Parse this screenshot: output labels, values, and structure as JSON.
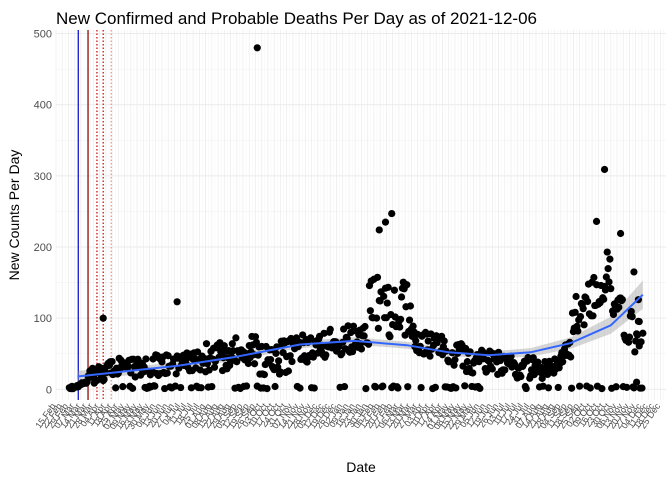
{
  "chart_data": {
    "type": "scatter",
    "title": "New Confirmed and Probable Deaths Per Day as of 2021-12-06",
    "xlabel": "Date",
    "ylabel": "New Counts Per Day",
    "ylim": [
      -15,
      505
    ],
    "y_ticks": [
      0,
      100,
      200,
      300,
      400,
      500
    ],
    "xlim": [
      "2020-02-15",
      "2021-12-31"
    ],
    "x_tick_format": "%d %b",
    "x_tick_every_days": 7,
    "grid": true,
    "background": "#ffffff",
    "grid_color": "#ebebeb",
    "point_color": "#000000",
    "smooth_color": "#3366ff",
    "band_color": "#999999",
    "vlines": [
      {
        "date": "2020-03-11",
        "color": "#0000cc",
        "style": "solid"
      },
      {
        "date": "2020-03-22",
        "color": "#8b0000",
        "style": "solid"
      },
      {
        "date": "2020-04-01",
        "color": "#cc0000",
        "style": "dotted"
      },
      {
        "date": "2020-04-08",
        "color": "#cc0000",
        "style": "dotted"
      },
      {
        "date": "2020-04-17",
        "color": "#e89090",
        "style": "dotted"
      }
    ],
    "segments": [
      {
        "start": "2020-03-01",
        "end": "2020-03-21",
        "y0": 1,
        "y1": 10,
        "spread": 4
      },
      {
        "start": "2020-03-22",
        "end": "2020-04-30",
        "y0": 15,
        "y1": 35,
        "spread": 25
      },
      {
        "start": "2020-05-01",
        "end": "2020-07-31",
        "y0": 30,
        "y1": 40,
        "spread": 30
      },
      {
        "start": "2020-08-01",
        "end": "2020-09-30",
        "y0": 45,
        "y1": 55,
        "spread": 45
      },
      {
        "start": "2020-10-01",
        "end": "2020-11-30",
        "y0": 40,
        "y1": 55,
        "spread": 50
      },
      {
        "start": "2020-12-01",
        "end": "2021-01-31",
        "y0": 60,
        "y1": 75,
        "spread": 40
      },
      {
        "start": "2021-02-01",
        "end": "2021-03-20",
        "y0": 120,
        "y1": 110,
        "spread": 85
      },
      {
        "start": "2021-03-21",
        "end": "2021-05-20",
        "y0": 70,
        "y1": 45,
        "spread": 40
      },
      {
        "start": "2021-05-21",
        "end": "2021-08-15",
        "y0": 40,
        "y1": 30,
        "spread": 35
      },
      {
        "start": "2021-08-16",
        "end": "2021-09-15",
        "y0": 25,
        "y1": 55,
        "spread": 30
      },
      {
        "start": "2021-09-16",
        "end": "2021-10-31",
        "y0": 95,
        "y1": 170,
        "spread": 65
      },
      {
        "start": "2021-11-01",
        "end": "2021-12-05",
        "y0": 120,
        "y1": 65,
        "spread": 55
      }
    ],
    "outliers": [
      {
        "x": "2020-09-28",
        "y": 480
      },
      {
        "x": "2021-10-23",
        "y": 309
      },
      {
        "x": "2020-04-08",
        "y": 100
      },
      {
        "x": "2020-06-30",
        "y": 123
      },
      {
        "x": "2021-02-26",
        "y": 247
      },
      {
        "x": "2021-02-19",
        "y": 235
      },
      {
        "x": "2021-02-12",
        "y": 224
      },
      {
        "x": "2021-10-14",
        "y": 236
      },
      {
        "x": "2021-11-10",
        "y": 219
      },
      {
        "x": "2021-11-25",
        "y": 165
      },
      {
        "x": "2021-11-30",
        "y": 126
      },
      {
        "x": "2021-11-28",
        "y": 10
      },
      {
        "x": "2021-12-01",
        "y": 61
      }
    ],
    "smooth": [
      [
        "2020-03-10",
        18
      ],
      [
        "2020-05-01",
        25
      ],
      [
        "2020-07-01",
        33
      ],
      [
        "2020-09-01",
        45
      ],
      [
        "2020-11-15",
        63
      ],
      [
        "2021-01-15",
        68
      ],
      [
        "2021-03-15",
        62
      ],
      [
        "2021-05-01",
        52
      ],
      [
        "2021-06-15",
        48
      ],
      [
        "2021-08-01",
        52
      ],
      [
        "2021-09-15",
        65
      ],
      [
        "2021-10-30",
        90
      ],
      [
        "2021-12-05",
        133
      ]
    ],
    "band": [
      8,
      6,
      5,
      5,
      5,
      5,
      5,
      5,
      5,
      6,
      8,
      12,
      20
    ]
  }
}
